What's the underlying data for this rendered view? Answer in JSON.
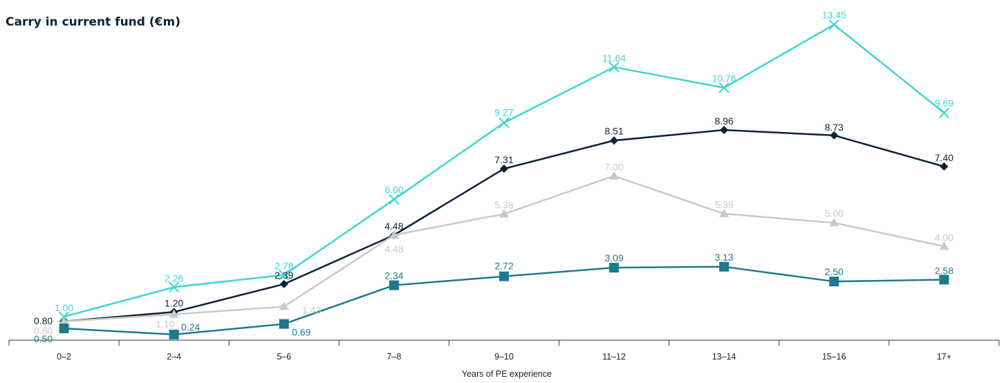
{
  "chart_data": {
    "type": "line",
    "title": "Carry in current fund (€m)",
    "xlabel": "Years of PE experience",
    "ylabel": "",
    "categories": [
      "0–2",
      "2–4",
      "5–6",
      "7–8",
      "9–10",
      "11–12",
      "13–14",
      "15–16",
      "17+"
    ],
    "ylim": [
      0,
      14
    ],
    "grid": false,
    "series": [
      {
        "color": "#3dd5d3",
        "marker": "x-icon",
        "values": [
          1.0,
          2.26,
          2.78,
          6.0,
          9.27,
          11.64,
          10.76,
          13.45,
          9.69
        ],
        "labels": [
          "1.00",
          "2.26",
          "2.78",
          "6.00",
          "9.27",
          "11.64",
          "10.76",
          "13.45",
          "9.69"
        ]
      },
      {
        "color": "#0b2239",
        "marker": "diamond-icon",
        "values": [
          0.8,
          1.2,
          2.39,
          4.48,
          7.31,
          8.51,
          8.96,
          8.73,
          7.4
        ],
        "labels": [
          "0.80",
          "1.20",
          "2.39",
          "4.48",
          "7.31",
          "8.51",
          "8.96",
          "8.73",
          "7.40"
        ]
      },
      {
        "color": "#c9c9c9",
        "marker": "triangle-icon",
        "values": [
          0.8,
          1.1,
          1.43,
          4.48,
          5.38,
          7.0,
          5.39,
          5.0,
          4.0
        ],
        "labels": [
          "0.80",
          "1.10",
          "1.43",
          "4.48",
          "5.38",
          "7.00",
          "5.39",
          "5.00",
          "4.00"
        ]
      },
      {
        "color": "#1d7a8c",
        "marker": "square-icon",
        "values": [
          0.5,
          0.24,
          0.69,
          2.34,
          2.72,
          3.09,
          3.13,
          2.5,
          2.58
        ],
        "labels": [
          "0.50",
          "0.24",
          "0.69",
          "2.34",
          "2.72",
          "3.09",
          "3.13",
          "2.50",
          "2.58"
        ]
      }
    ]
  }
}
